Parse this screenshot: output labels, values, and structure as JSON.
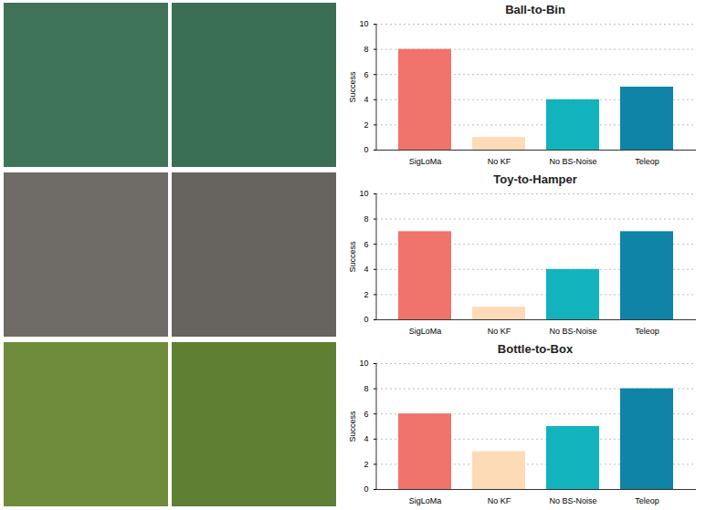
{
  "chart_data": [
    {
      "type": "bar",
      "title": "Ball-to-Bin",
      "y_label": "Success",
      "categories": [
        "SigLoMa",
        "No KF",
        "No BS-Noise",
        "Teleop"
      ],
      "values": [
        8,
        1,
        4,
        5
      ],
      "colors": [
        "#f0736c",
        "#fddbb7",
        "#13b3bd",
        "#0f84a7"
      ],
      "ylim": [
        0,
        10
      ],
      "yticks": [
        0,
        2,
        4,
        6,
        8,
        10
      ],
      "grid": true
    },
    {
      "type": "bar",
      "title": "Toy-to-Hamper",
      "y_label": "Success",
      "categories": [
        "SigLoMa",
        "No KF",
        "No BS-Noise",
        "Teleop"
      ],
      "values": [
        7,
        1,
        4,
        7
      ],
      "colors": [
        "#f0736c",
        "#fddbb7",
        "#13b3bd",
        "#0f84a7"
      ],
      "ylim": [
        0,
        10
      ],
      "yticks": [
        0,
        2,
        4,
        6,
        8,
        10
      ],
      "grid": true
    },
    {
      "type": "bar",
      "title": "Bottle-to-Box",
      "y_label": "Success",
      "categories": [
        "SigLoMa",
        "No KF",
        "No BS-Noise",
        "Teleop"
      ],
      "values": [
        6,
        3,
        5,
        8
      ],
      "colors": [
        "#f0736c",
        "#fddbb7",
        "#13b3bd",
        "#0f84a7"
      ],
      "ylim": [
        0,
        10
      ],
      "yticks": [
        0,
        2,
        4,
        6,
        8,
        10
      ],
      "grid": true
    }
  ]
}
